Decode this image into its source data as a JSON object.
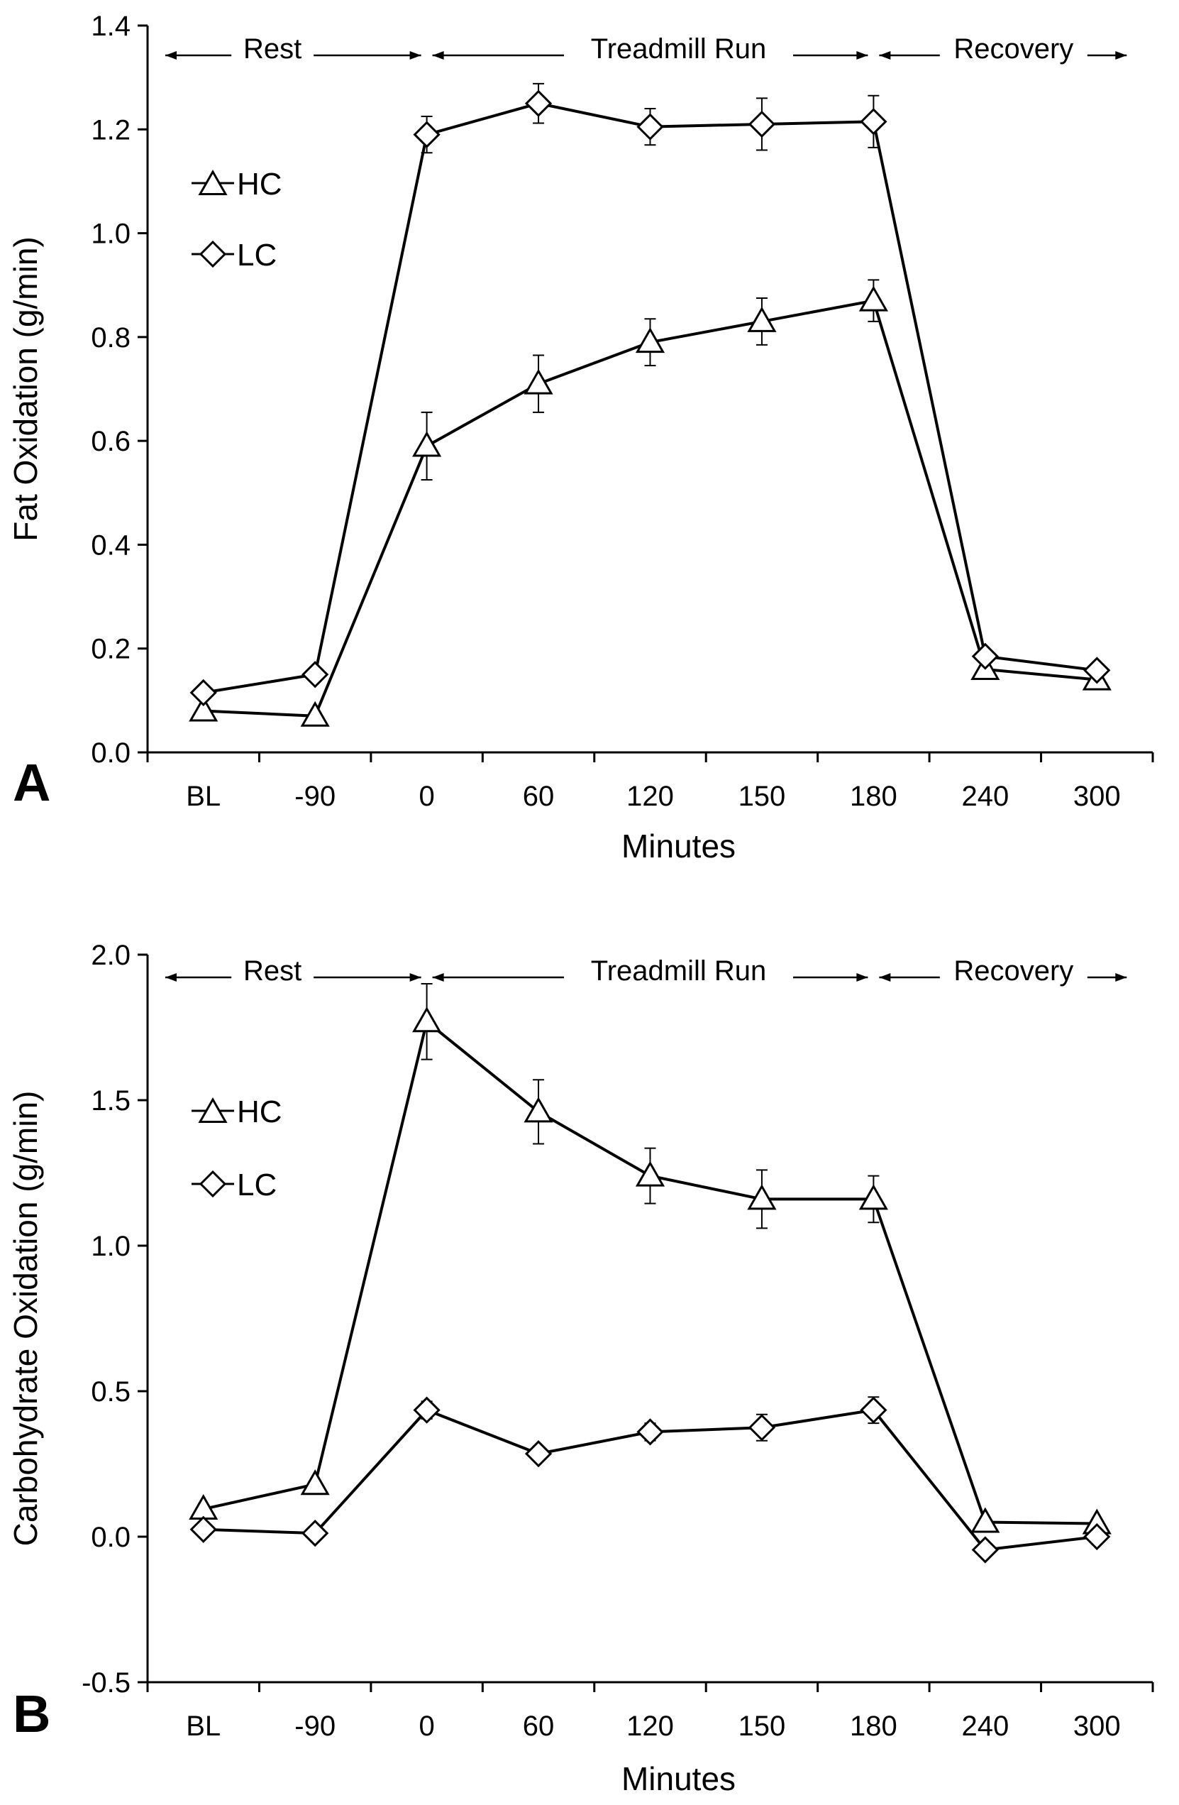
{
  "chart_data": [
    {
      "type": "line",
      "panel": "A",
      "xlabel": "Minutes",
      "ylabel": "Fat Oxidation (g/min)",
      "categories": [
        "BL",
        "-90",
        "0",
        "60",
        "120",
        "150",
        "180",
        "240",
        "300"
      ],
      "ylim": [
        0,
        1.4
      ],
      "yticks": [
        "0.0",
        "0.2",
        "0.4",
        "0.6",
        "0.8",
        "1.0",
        "1.2",
        "1.4"
      ],
      "phases": [
        "Rest",
        "Treadmill Run",
        "Recovery"
      ],
      "legend": [
        "HC",
        "LC"
      ],
      "series": [
        {
          "name": "HC",
          "marker": "triangle",
          "values": [
            0.08,
            0.07,
            0.59,
            0.71,
            0.79,
            0.83,
            0.87,
            0.16,
            0.14
          ],
          "errors": [
            0,
            0,
            0.065,
            0.055,
            0.045,
            0.045,
            0.04,
            0,
            0
          ]
        },
        {
          "name": "LC",
          "marker": "diamond",
          "values": [
            0.115,
            0.15,
            1.19,
            1.25,
            1.205,
            1.21,
            1.215,
            0.185,
            0.158
          ],
          "errors": [
            0,
            0,
            0.035,
            0.038,
            0.035,
            0.05,
            0.05,
            0,
            0
          ]
        }
      ]
    },
    {
      "type": "line",
      "panel": "B",
      "xlabel": "Minutes",
      "ylabel": "Carbohydrate Oxidation (g/min)",
      "categories": [
        "BL",
        "-90",
        "0",
        "60",
        "120",
        "150",
        "180",
        "240",
        "300"
      ],
      "ylim": [
        -0.5,
        2.0
      ],
      "yticks": [
        "-0.5",
        "0.0",
        "0.5",
        "1.0",
        "1.5",
        "2.0"
      ],
      "phases": [
        "Rest",
        "Treadmill Run",
        "Recovery"
      ],
      "legend": [
        "HC",
        "LC"
      ],
      "series": [
        {
          "name": "HC",
          "marker": "triangle",
          "values": [
            0.095,
            0.18,
            1.77,
            1.46,
            1.24,
            1.16,
            1.16,
            0.05,
            0.045
          ],
          "errors": [
            0,
            0,
            0.13,
            0.11,
            0.095,
            0.1,
            0.08,
            0,
            0
          ]
        },
        {
          "name": "LC",
          "marker": "diamond",
          "values": [
            0.025,
            0.012,
            0.435,
            0.285,
            0.36,
            0.375,
            0.435,
            -0.045,
            0.0
          ],
          "errors": [
            0,
            0,
            0.03,
            0.025,
            0.03,
            0.045,
            0.045,
            0,
            0
          ]
        }
      ]
    }
  ]
}
